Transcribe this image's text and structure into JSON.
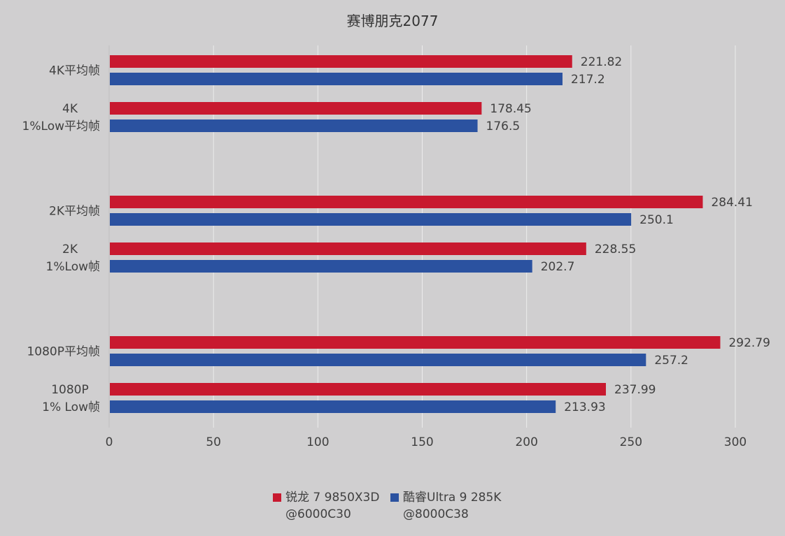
{
  "chart_data": {
    "type": "bar",
    "orientation": "horizontal",
    "title": "赛博朋克2077",
    "categories": [
      "4K平均帧",
      "4K\n1%Low平均帧",
      "2K平均帧",
      "2K\n1%Low帧",
      "1080P平均帧",
      "1080P\n1% Low帧"
    ],
    "series": [
      {
        "name": "锐龙 7 9850X3D @6000C30",
        "name_lines": [
          "锐龙 7 9850X3D",
          "@6000C30"
        ],
        "color": "#c8192f",
        "values": [
          221.82,
          178.45,
          284.41,
          228.55,
          292.79,
          237.99
        ]
      },
      {
        "name": "酷睿Ultra 9 285K @8000C38",
        "name_lines": [
          "酷睿Ultra 9 285K",
          "@8000C38"
        ],
        "color": "#2b52a0",
        "values": [
          217.2,
          176.5,
          250.1,
          202.7,
          257.2,
          213.93
        ]
      }
    ],
    "xlim": [
      0,
      300
    ],
    "xticks": [
      0,
      50,
      100,
      150,
      200,
      250,
      300
    ],
    "grid": true,
    "data_labels": true,
    "legend": "bottom",
    "background": "#d0cfd0"
  }
}
